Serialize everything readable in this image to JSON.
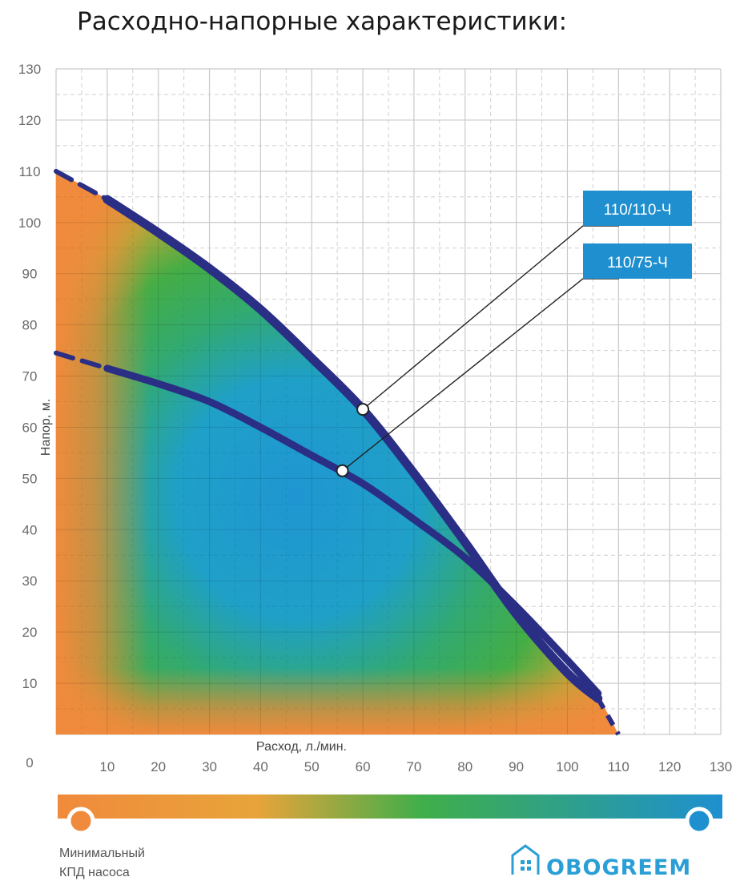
{
  "chart_data": {
    "type": "line",
    "title": "Расходно-напорные характеристики:",
    "xlabel": "Расход, л./мин.",
    "ylabel": "Напор, м.",
    "xlim": [
      0,
      130
    ],
    "ylim": [
      0,
      130
    ],
    "x_ticks": [
      10,
      20,
      30,
      40,
      50,
      60,
      70,
      80,
      90,
      100,
      110,
      120,
      130
    ],
    "y_ticks": [
      0,
      10,
      20,
      30,
      40,
      50,
      60,
      70,
      80,
      90,
      100,
      110,
      120,
      130
    ],
    "grid": true,
    "background": "efficiency heatmap (orange = minimal pump efficiency, blue = maximal)",
    "series": [
      {
        "name": "110/110-Ч",
        "x": [
          0,
          10,
          20,
          30,
          40,
          50,
          60,
          70,
          80,
          90,
          100,
          106
        ],
        "y": [
          110,
          104.5,
          98,
          91,
          83,
          73.5,
          63.5,
          51,
          37.5,
          23.5,
          12,
          7
        ],
        "marker": {
          "x": 60,
          "y": 63.5
        }
      },
      {
        "name": "110/75-Ч",
        "x": [
          0,
          10,
          20,
          30,
          40,
          50,
          60,
          70,
          80,
          90,
          100,
          106
        ],
        "y": [
          74.5,
          71.5,
          68.5,
          65,
          60,
          54.5,
          49,
          42,
          34.5,
          25,
          14.5,
          8
        ],
        "marker": {
          "x": 56,
          "y": 51.5
        }
      }
    ],
    "x_end_point": 110
  },
  "legend": {
    "min_label_line1": "Минимальный",
    "min_label_line2": "КПД насоса",
    "min_color": "#f08a3c",
    "max_color": "#1e90d0"
  },
  "brand": {
    "name": "OBOGREEM",
    "color": "#2a9fd6"
  },
  "colors": {
    "curve": "#2a2e84",
    "callout_bg": "#1f8fcf",
    "grid": "#c9c9c9"
  }
}
